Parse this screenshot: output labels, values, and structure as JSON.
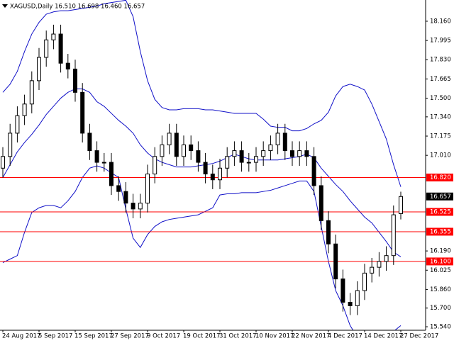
{
  "chart_data": {
    "type": "candlestick",
    "title": "XAGUSD,Daily  16.510 16.698 16.460 16.657",
    "categories": [
      "24 Aug 2017",
      null,
      null,
      null,
      null,
      "5 Sep 2017",
      null,
      null,
      null,
      null,
      "15 Sep 2017",
      null,
      null,
      null,
      null,
      "27 Sep 2017",
      null,
      null,
      null,
      null,
      "9 Oct 2017",
      null,
      null,
      null,
      null,
      "19 Oct 2017",
      null,
      null,
      null,
      null,
      "31 Oct 2017",
      null,
      null,
      null,
      null,
      "10 Nov 2017",
      null,
      null,
      null,
      null,
      "22 Nov 2017",
      null,
      null,
      null,
      null,
      "4 Dec 2017",
      null,
      null,
      null,
      null,
      "14 Dec 2017",
      null,
      null,
      null,
      null,
      "27 Dec 2017"
    ],
    "open": [
      16.9,
      17.0,
      17.2,
      17.35,
      17.45,
      17.65,
      17.85,
      18.0,
      18.05,
      17.8,
      17.75,
      17.55,
      17.2,
      17.05,
      16.95,
      16.95,
      16.75,
      16.7,
      16.6,
      16.55,
      16.6,
      16.85,
      17.0,
      17.1,
      17.2,
      17.0,
      17.1,
      17.05,
      16.95,
      16.85,
      16.8,
      16.9,
      17.0,
      17.05,
      16.95,
      16.95,
      17.0,
      17.05,
      17.1,
      17.2,
      17.05,
      17.0,
      17.05,
      17.0,
      16.75,
      16.45,
      16.25,
      15.95,
      15.75,
      15.72,
      15.85,
      16.0,
      16.05,
      16.1,
      16.15,
      16.51
    ],
    "high": [
      17.08,
      17.28,
      17.43,
      17.53,
      17.73,
      17.93,
      18.08,
      18.13,
      18.13,
      17.88,
      17.83,
      17.63,
      17.28,
      17.13,
      17.03,
      17.03,
      16.83,
      16.78,
      16.68,
      16.68,
      16.93,
      17.08,
      17.18,
      17.28,
      17.28,
      17.18,
      17.18,
      17.13,
      17.03,
      16.93,
      16.98,
      17.08,
      17.13,
      17.13,
      17.03,
      17.08,
      17.13,
      17.18,
      17.28,
      17.28,
      17.13,
      17.13,
      17.13,
      17.08,
      16.83,
      16.53,
      16.33,
      16.03,
      15.83,
      15.93,
      16.08,
      16.13,
      16.18,
      16.23,
      16.58,
      16.698
    ],
    "low": [
      16.82,
      16.92,
      17.12,
      17.27,
      17.37,
      17.57,
      17.77,
      17.92,
      17.72,
      17.67,
      17.47,
      17.12,
      16.97,
      16.87,
      16.87,
      16.67,
      16.62,
      16.52,
      16.47,
      16.47,
      16.52,
      16.77,
      16.92,
      17.02,
      16.92,
      16.92,
      16.97,
      16.87,
      16.77,
      16.72,
      16.72,
      16.82,
      16.92,
      16.87,
      16.87,
      16.87,
      16.92,
      16.97,
      17.02,
      16.97,
      16.92,
      16.92,
      16.92,
      16.67,
      16.37,
      16.17,
      15.87,
      15.67,
      15.64,
      15.64,
      15.77,
      15.92,
      15.97,
      16.02,
      16.07,
      16.46
    ],
    "close": [
      17.0,
      17.2,
      17.35,
      17.45,
      17.65,
      17.85,
      18.0,
      18.05,
      17.8,
      17.75,
      17.55,
      17.2,
      17.05,
      16.95,
      16.95,
      16.75,
      16.7,
      16.6,
      16.55,
      16.6,
      16.85,
      17.0,
      17.1,
      17.2,
      17.0,
      17.1,
      17.05,
      16.95,
      16.85,
      16.8,
      16.9,
      17.0,
      17.05,
      16.95,
      16.95,
      17.0,
      17.05,
      17.1,
      17.2,
      17.05,
      17.0,
      17.05,
      17.0,
      16.75,
      16.45,
      16.25,
      15.95,
      15.75,
      15.72,
      15.85,
      16.0,
      16.05,
      16.1,
      16.15,
      16.5,
      16.657
    ],
    "up_color": "#ffffff",
    "down_color": "#000000",
    "series": [
      {
        "color": "#1010c8",
        "values": [
          17.55,
          17.62,
          17.73,
          17.9,
          18.05,
          18.15,
          18.22,
          18.24,
          18.25,
          18.25,
          18.26,
          18.27,
          18.28,
          18.29,
          18.31,
          18.32,
          18.33,
          18.34,
          18.2,
          17.9,
          17.65,
          17.49,
          17.42,
          17.4,
          17.4,
          17.41,
          17.41,
          17.41,
          17.4,
          17.4,
          17.39,
          17.38,
          17.37,
          17.37,
          17.37,
          17.37,
          17.32,
          17.26,
          17.25,
          17.25,
          17.22,
          17.22,
          17.24,
          17.28,
          17.31,
          17.38,
          17.52,
          17.6,
          17.62,
          17.6,
          17.57,
          17.45,
          17.3,
          17.15,
          16.93,
          16.74
        ]
      },
      {
        "color": "#1010c8",
        "values": [
          16.82,
          16.93,
          17.04,
          17.12,
          17.19,
          17.27,
          17.36,
          17.43,
          17.5,
          17.55,
          17.58,
          17.58,
          17.55,
          17.47,
          17.43,
          17.37,
          17.31,
          17.26,
          17.2,
          17.1,
          17.03,
          16.98,
          16.95,
          16.93,
          16.91,
          16.91,
          16.91,
          16.92,
          16.93,
          16.94,
          16.96,
          16.99,
          17.02,
          17.0,
          16.98,
          16.97,
          16.97,
          16.97,
          16.97,
          16.98,
          16.99,
          17.0,
          17.02,
          16.99,
          16.9,
          16.83,
          16.76,
          16.7,
          16.62,
          16.55,
          16.48,
          16.43,
          16.35,
          16.27,
          16.18,
          16.14
        ]
      },
      {
        "color": "#1010c8",
        "values": [
          16.09,
          16.12,
          16.15,
          16.35,
          16.52,
          16.56,
          16.58,
          16.58,
          16.56,
          16.62,
          16.7,
          16.82,
          16.9,
          16.92,
          16.9,
          16.86,
          16.82,
          16.55,
          16.3,
          16.22,
          16.33,
          16.4,
          16.44,
          16.46,
          16.47,
          16.48,
          16.49,
          16.5,
          16.53,
          16.56,
          16.67,
          16.68,
          16.68,
          16.69,
          16.69,
          16.69,
          16.7,
          16.71,
          16.73,
          16.75,
          16.77,
          16.79,
          16.79,
          16.7,
          16.4,
          16.1,
          15.85,
          15.72,
          15.55,
          15.45,
          15.4,
          15.38,
          15.4,
          15.44,
          15.5,
          15.55
        ]
      }
    ],
    "ylim": [
      15.51,
      18.342
    ],
    "yticks": [
      {
        "value": 18.16,
        "label": "18.160"
      },
      17.995,
      {
        "value": 17.83,
        "label": "17.830"
      },
      17.665,
      {
        "value": 17.5,
        "label": "17.500"
      },
      {
        "value": 17.34,
        "label": "17.340"
      },
      17.175,
      {
        "value": 17.01,
        "label": "17.010"
      },
      {
        "value": 16.19,
        "label": "16.190"
      },
      16.025,
      {
        "value": 15.86,
        "label": "15.860"
      },
      {
        "value": 15.7,
        "label": "15.700"
      },
      {
        "value": 15.54,
        "label": "15.540"
      }
    ],
    "hlines": [
      {
        "value": 16.82,
        "label": "16.820"
      },
      16.525,
      16.355,
      {
        "value": 16.1,
        "label": "16.100"
      }
    ],
    "hline_color": "#ff0000",
    "last_price": 16.657,
    "last_price_color": "#000000"
  }
}
